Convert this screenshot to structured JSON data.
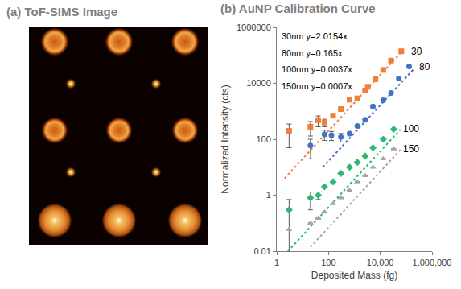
{
  "chart_data": [
    {
      "type": "image",
      "title": "(a) ToF-SIMS Image"
    },
    {
      "type": "scatter",
      "title": "(b) AuNP Calibration Curve",
      "x_label": "Deposited Mass (fg)",
      "y_label": "Normalized Intensity (cts)",
      "log": true,
      "grid": false,
      "xlim": [
        1,
        1000000
      ],
      "ylim": [
        0.01,
        1000000
      ],
      "xticks": [
        1,
        100,
        {
          "value": 10000,
          "label": "10,000"
        },
        {
          "value": 1000000,
          "label": "1,000,000"
        }
      ],
      "yticks": [
        0.01,
        1,
        100,
        10000,
        1000000
      ],
      "annotations": [
        "30nm y=2.0154x",
        "80nm y=0.165x",
        "100nm y=0.0037x",
        "150nm y=0.0007x"
      ],
      "series": [
        {
          "name": "30",
          "color": "#f07f3c",
          "marker": "square",
          "line_style": "dot",
          "x": [
            3,
            20,
            40,
            70,
            150,
            300,
            650,
            1300,
            2600,
            3300,
            6500,
            13000,
            26000,
            65000
          ],
          "values": [
            200,
            280,
            480,
            400,
            700,
            1200,
            2600,
            2900,
            5500,
            7500,
            14000,
            30000,
            65000,
            140000
          ],
          "errors": [
            150,
            150,
            200,
            120,
            0,
            0,
            0,
            0,
            0,
            0,
            0,
            0,
            0,
            0
          ],
          "trend_x": [
            2,
            80000
          ],
          "trend_y": [
            4,
            161000
          ]
        },
        {
          "name": "80",
          "color": "#4472c4",
          "marker": "circle",
          "line_style": "dot",
          "x": [
            20,
            70,
            130,
            300,
            650,
            1300,
            2600,
            5200,
            13000,
            26000,
            52000,
            130000
          ],
          "values": [
            60,
            150,
            140,
            120,
            160,
            300,
            500,
            1500,
            2500,
            4500,
            15000,
            40000
          ],
          "errors": [
            40,
            60,
            50,
            40,
            0,
            0,
            0,
            0,
            0,
            0,
            0,
            0
          ],
          "trend_x": [
            60,
            200000
          ],
          "trend_y": [
            10,
            33000
          ]
        },
        {
          "name": "100",
          "color": "#2eb872",
          "marker": "diamond",
          "line_style": "dot",
          "x": [
            3,
            20,
            40,
            70,
            150,
            300,
            650,
            1300,
            2600,
            5200,
            13000,
            33000
          ],
          "values": [
            0.3,
            0.8,
            1,
            2,
            3,
            6,
            10,
            15,
            25,
            50,
            100,
            230
          ],
          "errors": [
            0.4,
            0.5,
            0.3,
            0,
            0,
            0,
            0,
            0,
            0,
            0,
            0,
            0
          ],
          "trend_x": [
            2,
            60000
          ],
          "trend_y": [
            0.0074,
            222
          ]
        },
        {
          "name": "150",
          "color": "#a6a6a6",
          "marker": "triangle-up",
          "line_style": "dot",
          "x": [
            3,
            20,
            40,
            70,
            150,
            300,
            650,
            1300,
            2600,
            5200,
            13000,
            33000
          ],
          "values": [
            0.06,
            0.1,
            0.15,
            0.25,
            0.5,
            0.8,
            1.5,
            3,
            5,
            10,
            20,
            45
          ],
          "errors": [
            0,
            0,
            0,
            0,
            0,
            0,
            0,
            0,
            0,
            0,
            0,
            0
          ],
          "trend_x": [
            20,
            60000
          ],
          "trend_y": [
            0.014,
            42
          ]
        }
      ]
    }
  ]
}
